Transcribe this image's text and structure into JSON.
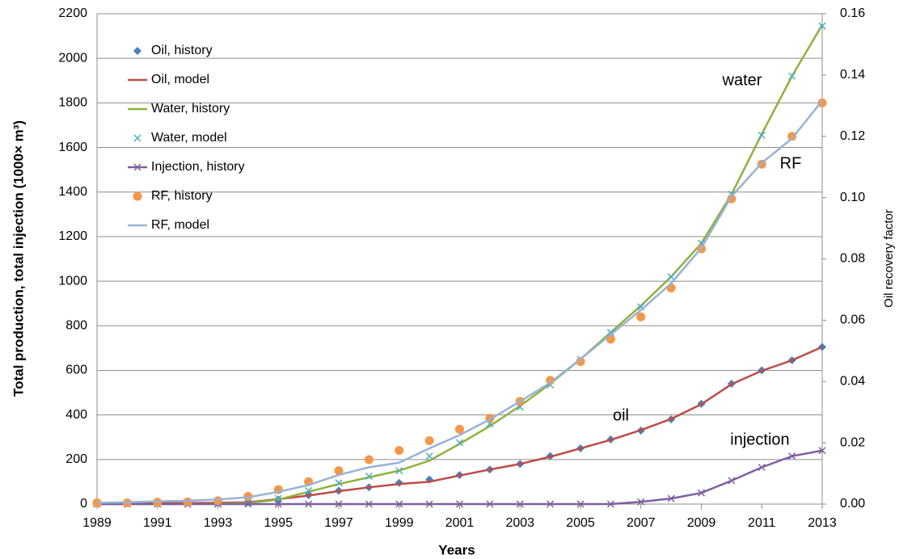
{
  "chart_data": {
    "type": "line",
    "xlabel": "Years",
    "ylabel": "Total production, total injection (1000× m³)",
    "y2label": "Oil recovery factor",
    "x": [
      1989,
      1990,
      1991,
      1992,
      1993,
      1994,
      1995,
      1996,
      1997,
      1998,
      1999,
      2000,
      2001,
      2002,
      2003,
      2004,
      2005,
      2006,
      2007,
      2008,
      2009,
      2010,
      2011,
      2012,
      2013
    ],
    "xlim": [
      1989,
      2013
    ],
    "xticks": [
      1989,
      1991,
      1993,
      1995,
      1997,
      1999,
      2001,
      2003,
      2005,
      2007,
      2009,
      2011,
      2013
    ],
    "ylim": [
      0,
      2200
    ],
    "yticks": [
      0,
      200,
      400,
      600,
      800,
      1000,
      1200,
      1400,
      1600,
      1800,
      2000,
      2200
    ],
    "y2lim": [
      0,
      0.16
    ],
    "y2ticks": [
      {
        "value": 0,
        "label": "0.00"
      },
      {
        "value": 0.02,
        "label": "0.02"
      },
      {
        "value": 0.04,
        "label": "0.04"
      },
      {
        "value": 0.06,
        "label": "0.06"
      },
      {
        "value": 0.08,
        "label": "0.08"
      },
      {
        "value": 0.1,
        "label": "0.10"
      },
      {
        "value": 0.12,
        "label": "0.12"
      },
      {
        "value": 0.14,
        "label": "0.14"
      },
      {
        "value": 0.16,
        "label": "0.16"
      }
    ],
    "grid": true,
    "legend": "upper left",
    "series": [
      {
        "name": "Oil, history",
        "color": "#4a7ebb",
        "marker": "diamond",
        "line": false,
        "values": [
          2,
          3,
          4,
          5,
          6,
          8,
          20,
          40,
          60,
          75,
          95,
          110,
          130,
          155,
          180,
          215,
          250,
          290,
          330,
          380,
          450,
          540,
          600,
          645,
          705
        ]
      },
      {
        "name": "Oil, model",
        "color": "#be4b48",
        "marker": null,
        "line": true,
        "values": [
          2,
          3,
          4,
          5,
          6,
          8,
          22,
          38,
          58,
          75,
          90,
          100,
          128,
          155,
          180,
          212,
          250,
          288,
          332,
          382,
          448,
          538,
          598,
          645,
          705
        ]
      },
      {
        "name": "Water, history",
        "color": "#8db33b",
        "marker": null,
        "line": true,
        "values": [
          0,
          0,
          0,
          0,
          2,
          5,
          20,
          55,
          90,
          120,
          150,
          195,
          270,
          350,
          440,
          540,
          650,
          770,
          890,
          1020,
          1170,
          1390,
          1660,
          1920,
          2150
        ]
      },
      {
        "name": "Water, model",
        "color": "#4bacc6",
        "marker": "x",
        "line": false,
        "values": [
          0,
          0,
          0,
          0,
          2,
          5,
          25,
          60,
          95,
          125,
          150,
          215,
          275,
          360,
          435,
          535,
          650,
          770,
          885,
          1020,
          1170,
          1390,
          1655,
          1920,
          2145
        ]
      },
      {
        "name": "Injection, history",
        "color": "#7d5fa0",
        "marker": "x",
        "line": true,
        "values": [
          0,
          0,
          0,
          0,
          0,
          0,
          0,
          0,
          0,
          0,
          0,
          0,
          0,
          0,
          0,
          0,
          0,
          0,
          10,
          25,
          50,
          105,
          165,
          215,
          240
        ]
      },
      {
        "name": "RF, history",
        "color": "#f79646",
        "marker": "circle",
        "line": false,
        "axis": "y2",
        "values": [
          0.0004,
          0.0004,
          0.0006,
          0.0007,
          0.0011,
          0.0025,
          0.0047,
          0.0073,
          0.0109,
          0.0145,
          0.0175,
          0.0207,
          0.0244,
          0.028,
          0.0335,
          0.0404,
          0.0465,
          0.0538,
          0.0611,
          0.0705,
          0.0833,
          0.0996,
          0.1109,
          0.12,
          0.1309
        ]
      },
      {
        "name": "RF, model",
        "color": "#95b3d7",
        "marker": null,
        "line": true,
        "axis": "y2",
        "values": [
          0.0004,
          0.0006,
          0.0009,
          0.0011,
          0.0015,
          0.0022,
          0.004,
          0.0062,
          0.0095,
          0.012,
          0.0135,
          0.0182,
          0.0225,
          0.0276,
          0.0335,
          0.0396,
          0.0473,
          0.0553,
          0.0633,
          0.072,
          0.0836,
          0.1004,
          0.1113,
          0.1193,
          0.1316
        ]
      }
    ],
    "annotations": [
      "water",
      "RF",
      "oil",
      "injection"
    ]
  }
}
